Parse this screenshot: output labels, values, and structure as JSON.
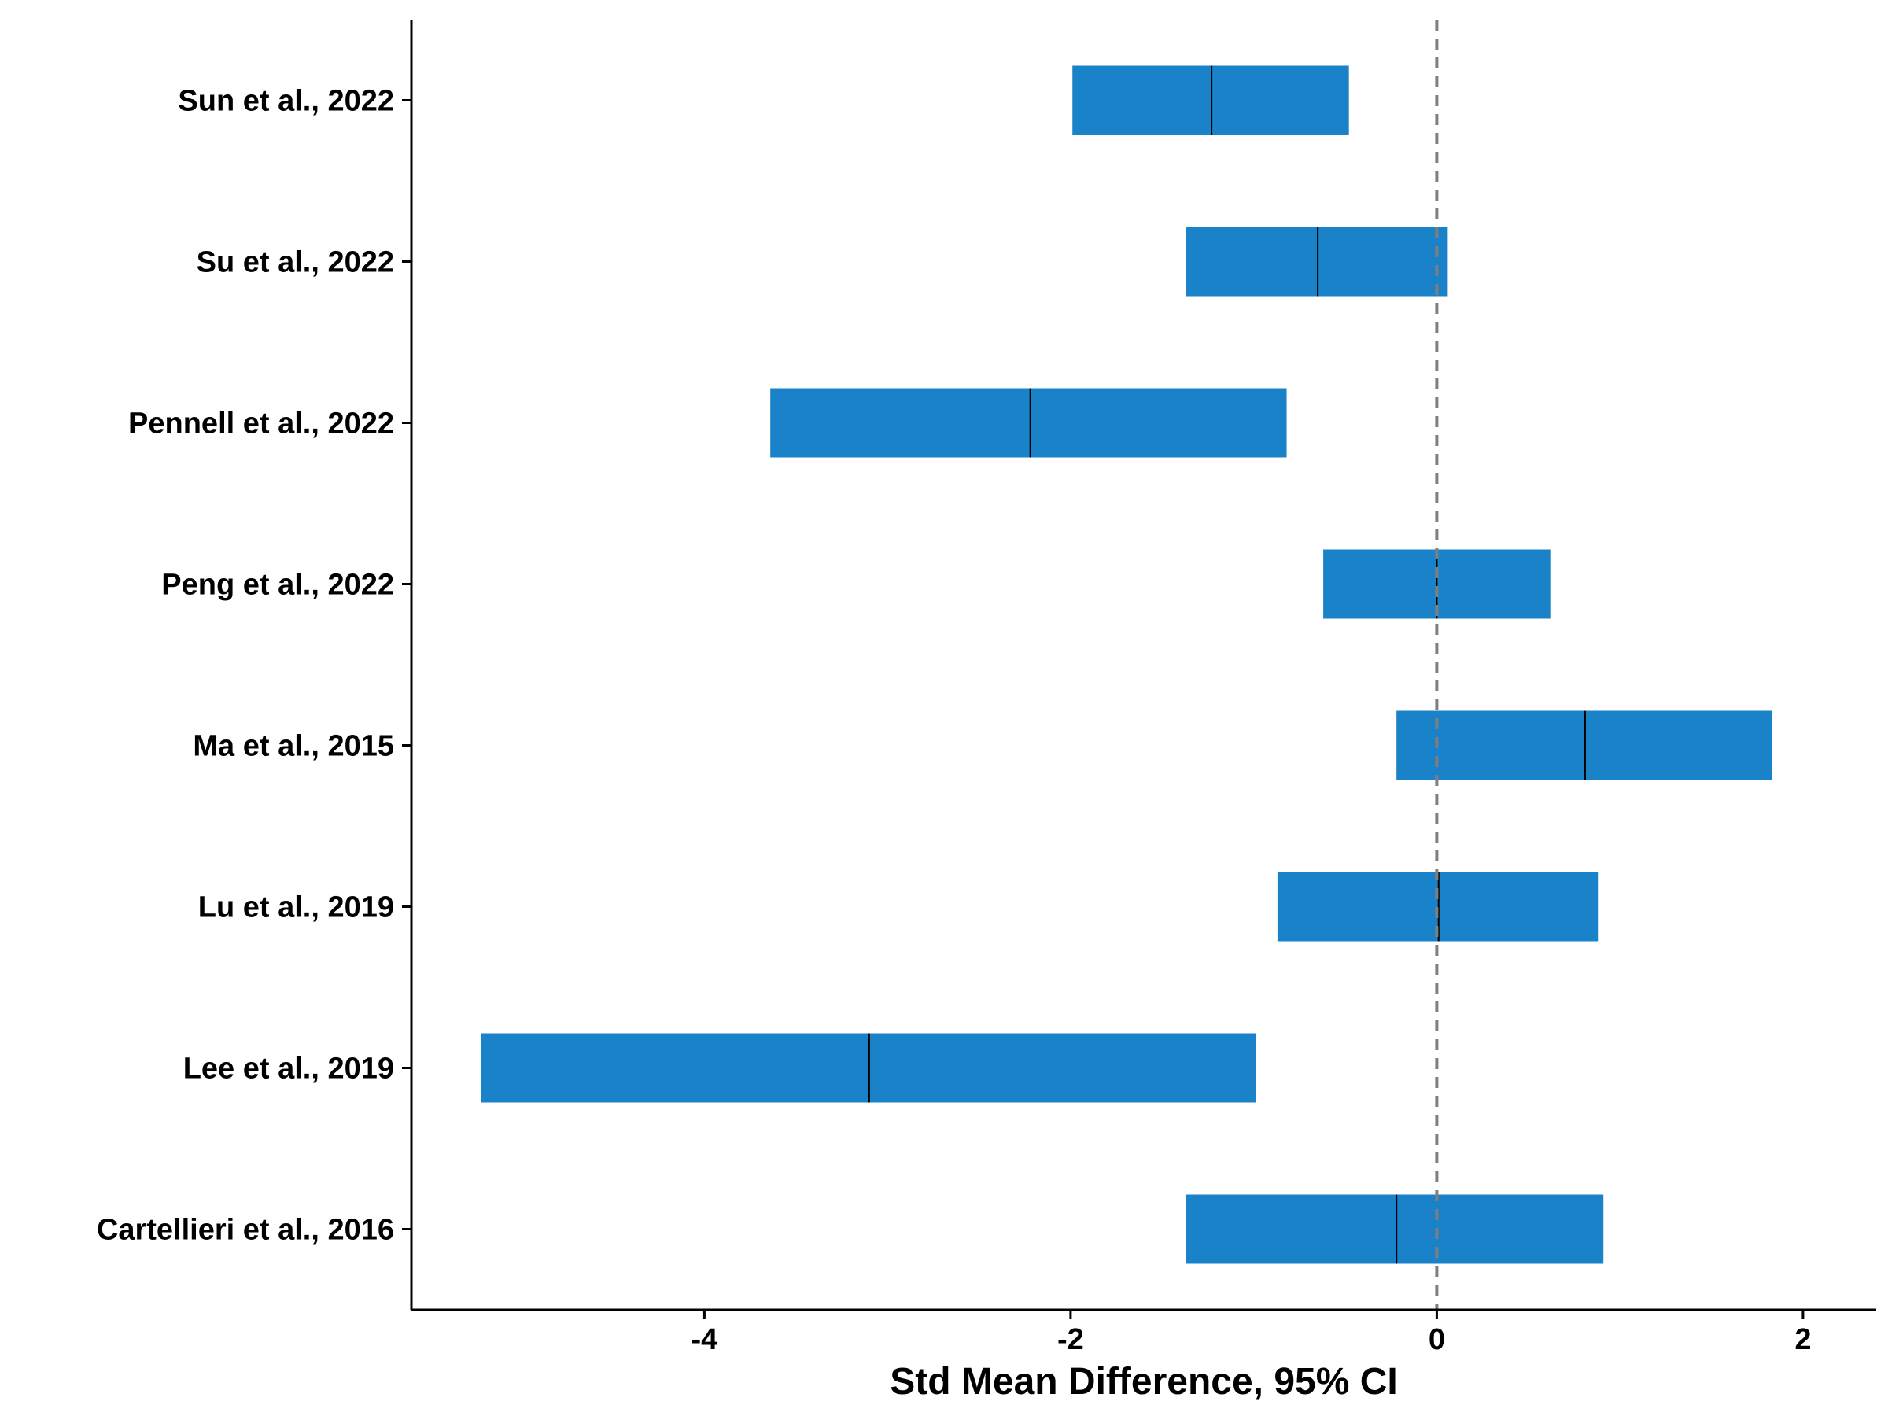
{
  "chart_data": {
    "type": "forest",
    "title": "",
    "xlabel": "Std Mean Difference, 95% CI",
    "ylabel": "",
    "xlim": [
      -5.6,
      2.4
    ],
    "xticks": [
      -4,
      -2,
      0,
      2
    ],
    "reference_line": 0,
    "grid": false,
    "legend": "none",
    "studies": [
      {
        "label": "Sun et al., 2022",
        "estimate": -1.23,
        "lower": -1.99,
        "upper": -0.48
      },
      {
        "label": "Su et al., 2022",
        "estimate": -0.65,
        "lower": -1.37,
        "upper": 0.06
      },
      {
        "label": "Pennell et al., 2022",
        "estimate": -2.22,
        "lower": -3.64,
        "upper": -0.82
      },
      {
        "label": "Peng et al., 2022",
        "estimate": 0.0,
        "lower": -0.62,
        "upper": 0.62
      },
      {
        "label": "Ma et al., 2015",
        "estimate": 0.81,
        "lower": -0.22,
        "upper": 1.83
      },
      {
        "label": "Lu et al., 2019",
        "estimate": 0.01,
        "lower": -0.87,
        "upper": 0.88
      },
      {
        "label": "Lee et al., 2019",
        "estimate": -3.1,
        "lower": -5.22,
        "upper": -0.99
      },
      {
        "label": "Cartellieri et al., 2016",
        "estimate": -0.22,
        "lower": -1.37,
        "upper": 0.91
      }
    ],
    "colors": {
      "bar": "#1a82c8",
      "estimate_line": "#000000",
      "reference_line": "#7f7f7f",
      "axis": "#000000"
    }
  }
}
